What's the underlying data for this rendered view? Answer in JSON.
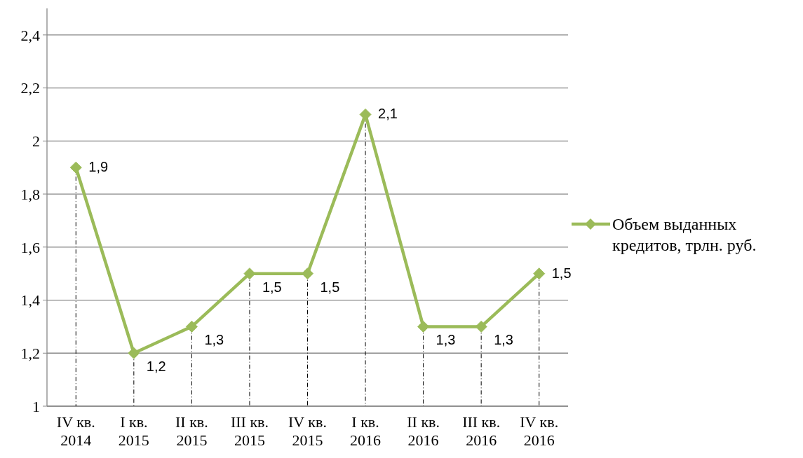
{
  "chart_data": {
    "type": "line",
    "categories": [
      "IV кв. 2014",
      "I кв. 2015",
      "II кв. 2015",
      "III кв. 2015",
      "IV кв. 2015",
      "I кв. 2016",
      "II кв. 2016",
      "III кв. 2016",
      "IV кв. 2016"
    ],
    "series": [
      {
        "name": "Объем выданных кредитов, трлн. руб.",
        "color": "#9bbb59",
        "values": [
          1.9,
          1.2,
          1.3,
          1.5,
          1.5,
          2.1,
          1.3,
          1.3,
          1.5
        ],
        "value_labels": [
          "1,9",
          "1,2",
          "1,3",
          "1,5",
          "1,5",
          "2,1",
          "1,3",
          "1,3",
          "1,5"
        ]
      }
    ],
    "ylim": [
      1,
      2.5
    ],
    "yticks": [
      {
        "value": 1,
        "label": "1"
      },
      {
        "value": 1.2,
        "label": "1,2"
      },
      {
        "value": 1.4,
        "label": "1,4"
      },
      {
        "value": 1.6,
        "label": "1,6"
      },
      {
        "value": 1.8,
        "label": "1,8"
      },
      {
        "value": 2,
        "label": "2"
      },
      {
        "value": 2.2,
        "label": "2,2"
      },
      {
        "value": 2.4,
        "label": "2,4"
      }
    ],
    "grid": "y",
    "legend": "right",
    "marker": "diamond",
    "line_style": "solid"
  }
}
